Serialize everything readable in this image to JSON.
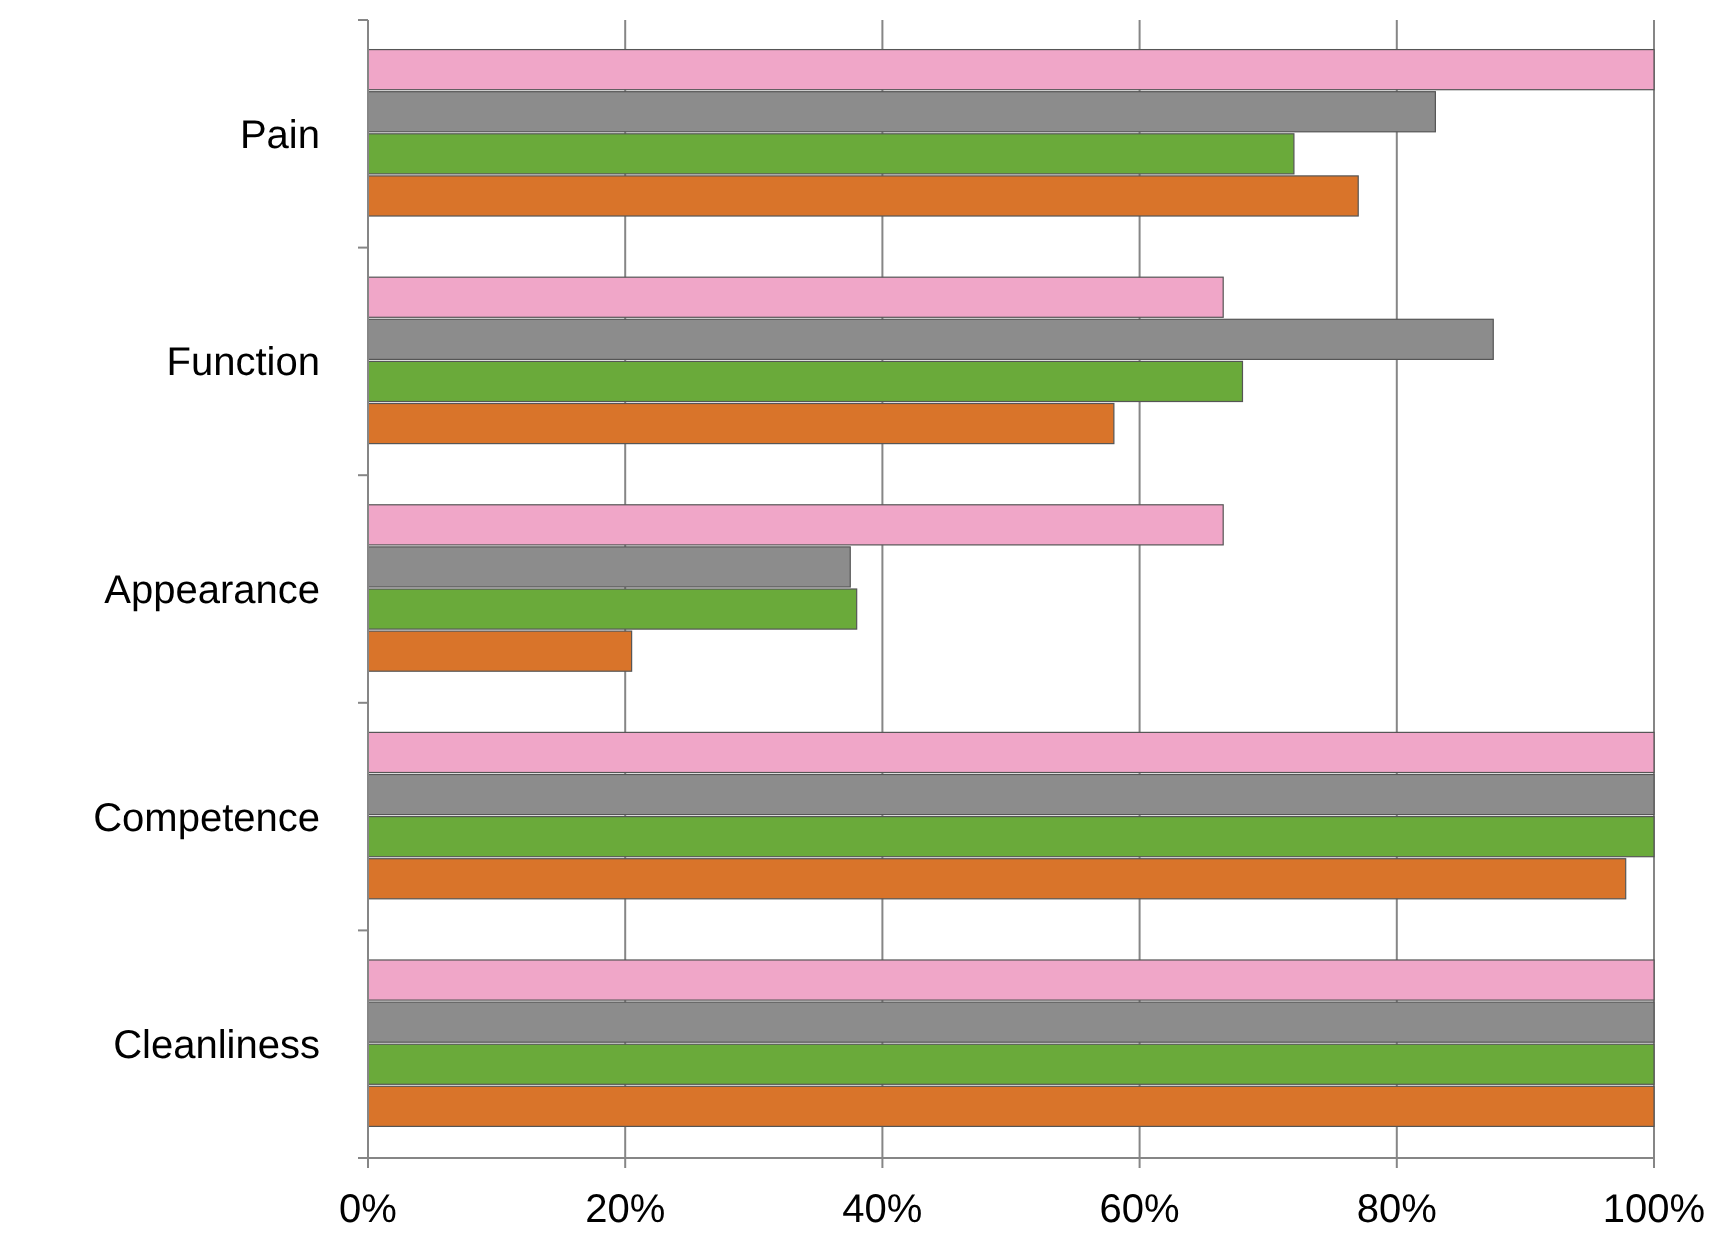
{
  "chart_data": {
    "type": "bar",
    "orientation": "horizontal",
    "categories": [
      "Pain",
      "Function",
      "Appearance",
      "Competence",
      "Cleanliness"
    ],
    "series": [
      {
        "color": "#d9742a",
        "values": [
          77,
          58,
          20.5,
          97.8,
          100
        ]
      },
      {
        "color": "#6aaa3a",
        "values": [
          72,
          68,
          38,
          100,
          100
        ]
      },
      {
        "color": "#8c8c8c",
        "values": [
          83,
          87.5,
          37.5,
          100,
          100
        ]
      },
      {
        "color": "#f0a6c8",
        "values": [
          100,
          66.5,
          66.5,
          100,
          100
        ]
      }
    ],
    "xlim": [
      0,
      100
    ],
    "xticks": [
      {
        "value": 0,
        "label": "0%"
      },
      {
        "value": 20,
        "label": "20%"
      },
      {
        "value": 40,
        "label": "40%"
      },
      {
        "value": 60,
        "label": "60%"
      },
      {
        "value": 80,
        "label": "80%"
      },
      {
        "value": 100,
        "label": "100%"
      }
    ],
    "grid": "x"
  }
}
